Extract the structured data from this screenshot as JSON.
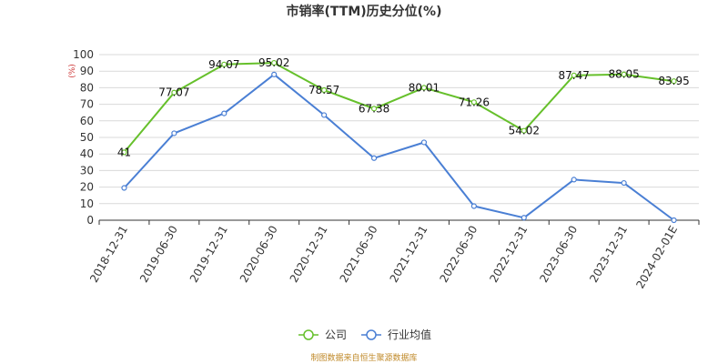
{
  "chart_data": {
    "type": "line",
    "title": "市销率(TTM)历史分位(%)",
    "ylabel": "(%)",
    "xlabel": "",
    "ylim": [
      0,
      100
    ],
    "yticks": [
      0,
      10,
      20,
      30,
      40,
      50,
      60,
      70,
      80,
      90,
      100
    ],
    "categories": [
      "2018-12-31",
      "2019-06-30",
      "2019-12-31",
      "2020-06-30",
      "2020-12-31",
      "2021-06-30",
      "2021-12-31",
      "2022-06-30",
      "2022-12-31",
      "2023-06-30",
      "2023-12-31",
      "2024-02-01E"
    ],
    "grid": true,
    "legend_position": "bottom",
    "series": [
      {
        "name": "公司",
        "color": "#66c02b",
        "values": [
          41,
          77.07,
          94.07,
          95.02,
          78.57,
          67.38,
          80.01,
          71.26,
          54.02,
          87.47,
          88.05,
          83.95
        ],
        "labels": [
          "41",
          "77.07",
          "94.07",
          "95.02",
          "78.57",
          "67.38",
          "80.01",
          "71.26",
          "54.02",
          "87.47",
          "88.05",
          "83.95"
        ]
      },
      {
        "name": "行业均值",
        "color": "#4a7fd4",
        "values": [
          19.5,
          52.5,
          64.5,
          88,
          63.5,
          37.5,
          47,
          8.5,
          1.5,
          24.5,
          22.5,
          0
        ]
      }
    ]
  },
  "footer": {
    "source": "制图数据来自恒生聚源数据库"
  }
}
